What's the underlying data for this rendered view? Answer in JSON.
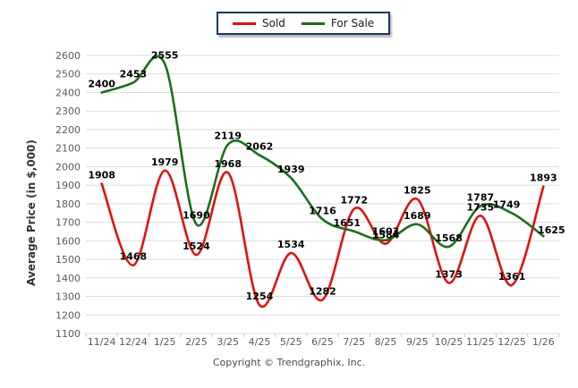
{
  "legend": {
    "items": [
      {
        "label": "Sold",
        "color": "#e01111"
      },
      {
        "label": "For Sale",
        "color": "#1e6e1e"
      }
    ],
    "border_color": "#17375e"
  },
  "y_axis": {
    "title": "Average Price (in $,000)",
    "min": 1100,
    "max": 2600,
    "step": 100,
    "tick_labels": [
      "1100",
      "1200",
      "1300",
      "1400",
      "1500",
      "1600",
      "1700",
      "1800",
      "1900",
      "2000",
      "2100",
      "2200",
      "2300",
      "2400",
      "2500",
      "2600"
    ]
  },
  "x_axis": {
    "labels": [
      "11/24",
      "12/24",
      "1/25",
      "2/25",
      "3/25",
      "4/25",
      "5/25",
      "6/25",
      "7/25",
      "8/25",
      "9/25",
      "10/25",
      "11/25",
      "12/25",
      "1/26"
    ]
  },
  "footer": {
    "copyright": "Copyright © Trendgraphix, Inc."
  },
  "colors": {
    "gridline": "#dcdcdc",
    "axis_tick": "#c9c9c9"
  },
  "chart_data": {
    "type": "line",
    "categories": [
      "11/24",
      "12/24",
      "1/25",
      "2/25",
      "3/25",
      "4/25",
      "5/25",
      "6/25",
      "7/25",
      "8/25",
      "9/25",
      "10/25",
      "11/25",
      "12/25",
      "1/26"
    ],
    "series": [
      {
        "name": "Sold",
        "color": "#e01111",
        "values": [
          1908,
          1468,
          1979,
          1524,
          1968,
          1254,
          1534,
          1282,
          1772,
          1584,
          1825,
          1373,
          1735,
          1361,
          1893
        ]
      },
      {
        "name": "For Sale",
        "color": "#1e6e1e",
        "values": [
          2400,
          2453,
          2555,
          1690,
          2119,
          2062,
          1939,
          1716,
          1651,
          1603,
          1689,
          1568,
          1787,
          1749,
          1625
        ]
      }
    ],
    "title": "",
    "xlabel": "",
    "ylabel": "Average Price (in $,000)",
    "ylim": [
      1100,
      2600
    ],
    "grid": true,
    "legend_position": "top-center",
    "smooth": true,
    "point_labels": true
  }
}
